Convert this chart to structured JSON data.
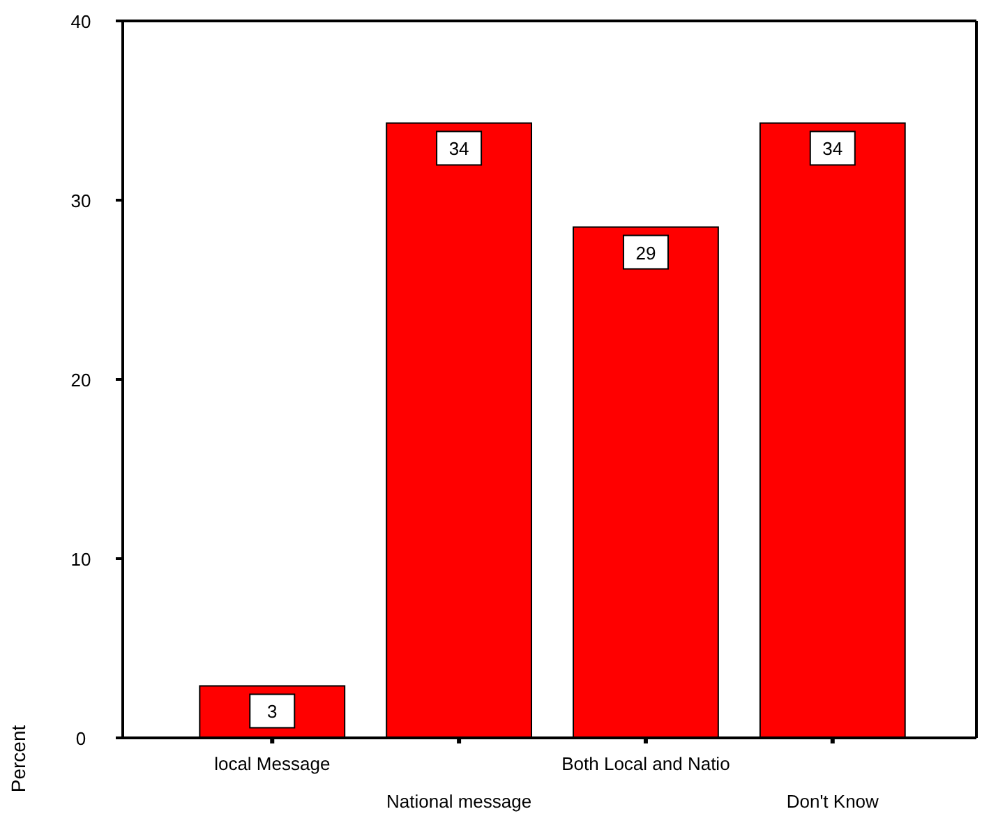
{
  "chart_data": {
    "type": "bar",
    "ylabel": "Percent",
    "categories": [
      "local Message",
      "National message",
      "Both Local and Natio",
      "Don't Know"
    ],
    "values": [
      2.9,
      34.3,
      28.5,
      34.3
    ],
    "value_labels": [
      "3",
      "34",
      "29",
      "34"
    ],
    "color": "#ff0000",
    "ylim": [
      0,
      40
    ],
    "yticks": [
      0,
      10,
      20,
      30,
      40
    ],
    "grid": false
  }
}
